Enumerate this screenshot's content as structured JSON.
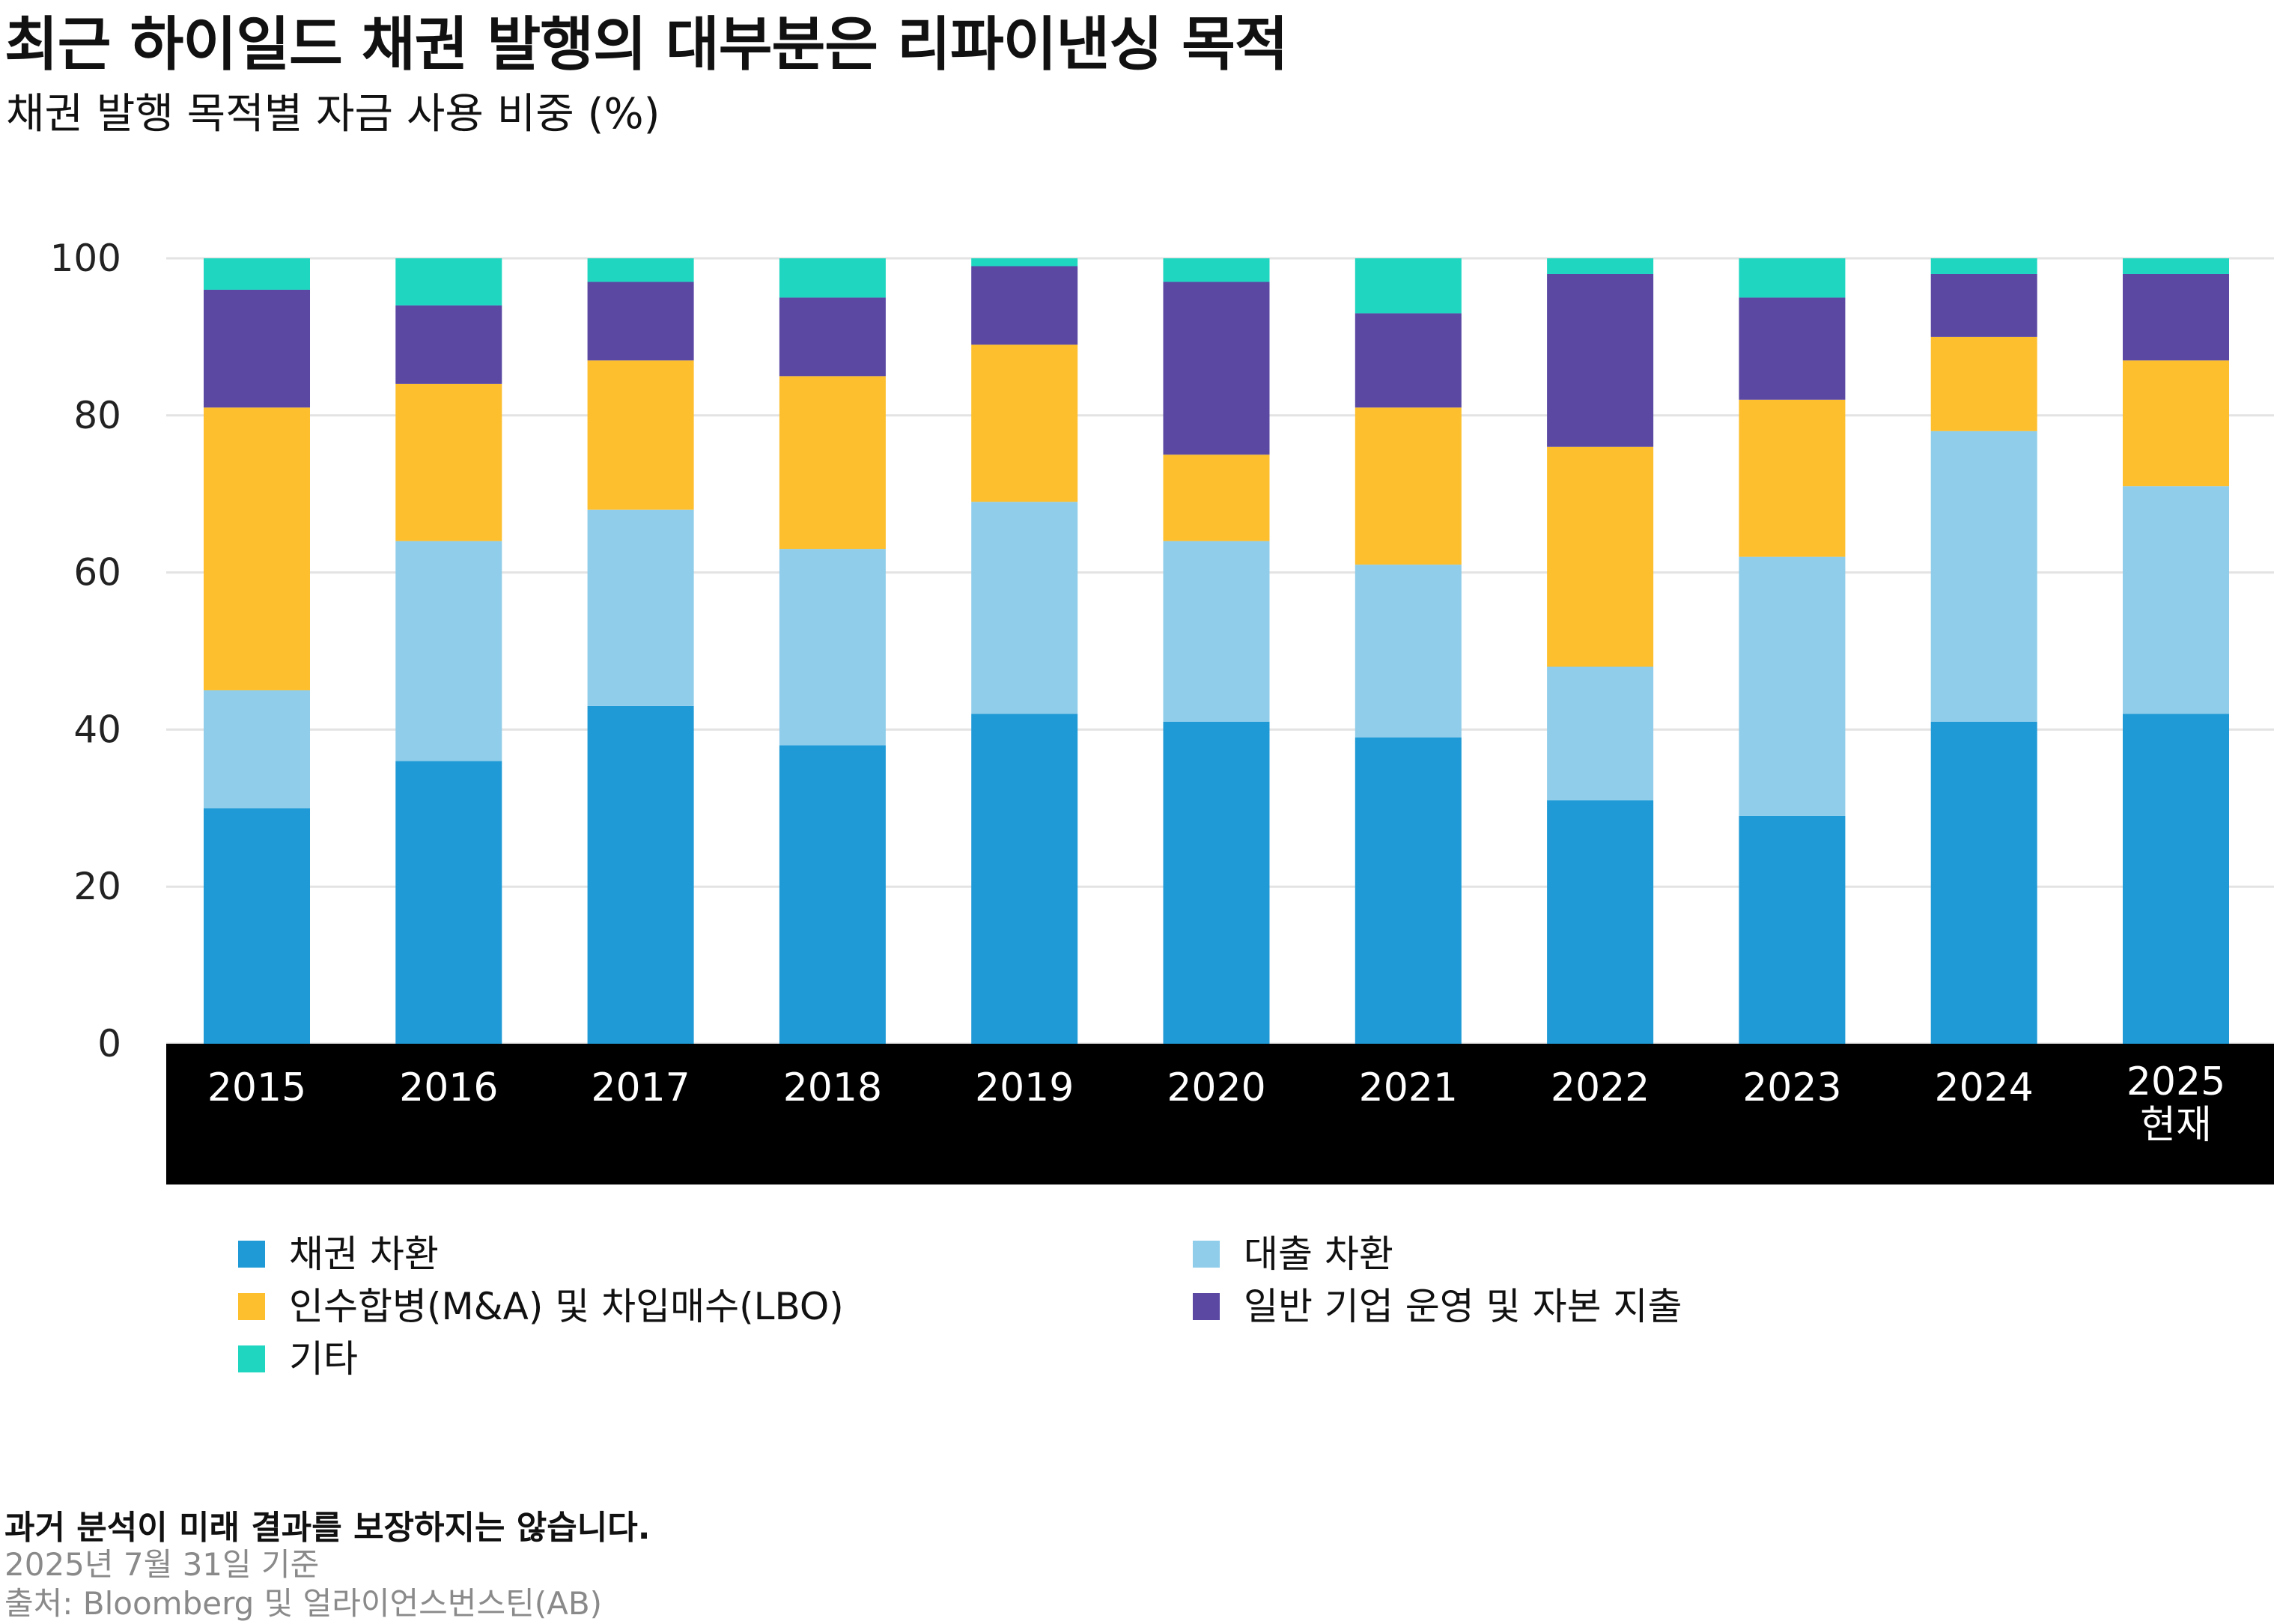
{
  "title": "최근 하이일드 채권 발행의 대부분은 리파이낸싱 목적",
  "subtitle": "채권 발행 목적별 자금 사용 비중 (%)",
  "chart_data": {
    "type": "bar",
    "stacked": true,
    "title": "최근 하이일드 채권 발행의 대부분은 리파이낸싱 목적",
    "subtitle": "채권 발행 목적별 자금 사용 비중 (%)",
    "xlabel": "",
    "ylabel": "",
    "ylim": [
      0,
      100
    ],
    "yticks": [
      0,
      20,
      40,
      60,
      80,
      100
    ],
    "grid": true,
    "legend_position": "bottom",
    "categories": [
      [
        "2015"
      ],
      [
        "2016"
      ],
      [
        "2017"
      ],
      [
        "2018"
      ],
      [
        "2019"
      ],
      [
        "2020"
      ],
      [
        "2021"
      ],
      [
        "2022"
      ],
      [
        "2023"
      ],
      [
        "2024"
      ],
      [
        "2025",
        "현재"
      ]
    ],
    "series": [
      {
        "name": "채권 차환",
        "color": "#1f9ad6",
        "values": [
          30,
          36,
          43,
          38,
          42,
          41,
          39,
          31,
          29,
          41,
          42
        ]
      },
      {
        "name": "대출 차환",
        "color": "#90cdea",
        "values": [
          15,
          28,
          25,
          25,
          27,
          23,
          22,
          17,
          33,
          37,
          29
        ]
      },
      {
        "name": "인수합병(M&A) 및 차입매수(LBO)",
        "color": "#fdbf2d",
        "values": [
          36,
          20,
          19,
          22,
          20,
          11,
          20,
          28,
          20,
          12,
          16
        ]
      },
      {
        "name": "일반 기업 운영 및 자본 지출",
        "color": "#5a48a3",
        "values": [
          15,
          10,
          10,
          10,
          10,
          22,
          12,
          22,
          13,
          8,
          11
        ]
      },
      {
        "name": "기타",
        "color": "#1fd6c1",
        "values": [
          4,
          6,
          3,
          5,
          1,
          3,
          7,
          2,
          5,
          2,
          2
        ]
      }
    ]
  },
  "footnote": "과거 분석이 미래 결과를 보장하지는 않습니다.",
  "as_of": "2025년 7월 31일 기준",
  "source": "출처: Bloomberg 및 얼라이언스번스틴(AB)"
}
